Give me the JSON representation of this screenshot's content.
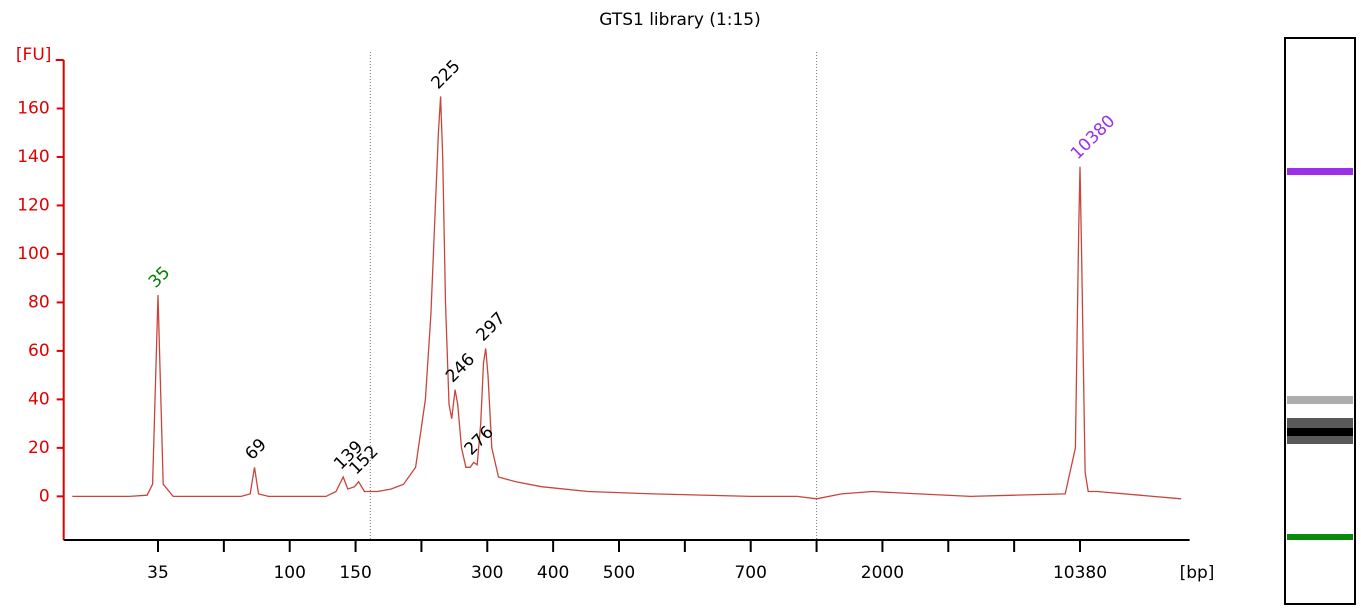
{
  "chart_data": {
    "type": "line",
    "title": "GTS1 library (1:15)",
    "ylabel": "[FU]",
    "xlabel": "[bp]",
    "x_scale": "ladder",
    "xlim": [
      21,
      20000
    ],
    "ylim": [
      -18,
      180
    ],
    "xticks": [
      35,
      100,
      150,
      300,
      400,
      500,
      700,
      2000,
      10380
    ],
    "xminorticks": [
      50,
      200,
      600,
      1000,
      3000,
      7000
    ],
    "yticks": [
      0,
      20,
      40,
      60,
      80,
      100,
      120,
      140,
      160
    ],
    "axis_color": "#e00000",
    "markers": [
      160,
      1000
    ],
    "series": [
      {
        "color": "#c8453c",
        "x": [
          22,
          30,
          33,
          34,
          35,
          36,
          38,
          45,
          60,
          66,
          69,
          72,
          80,
          100,
          125,
          133,
          139,
          143,
          149,
          152,
          156,
          165,
          175,
          185,
          195,
          205,
          212,
          218,
          222,
          225,
          228,
          232,
          237,
          241,
          246,
          250,
          256,
          263,
          270,
          276,
          282,
          288,
          293,
          297,
          301,
          306,
          315,
          340,
          380,
          450,
          550,
          700,
          900,
          1000,
          1300,
          1800,
          2500,
          4000,
          7000,
          9500,
          10100,
          10300,
          10380,
          10480,
          10700,
          10900,
          11500,
          19000
        ],
        "values": [
          0,
          0,
          0.5,
          5,
          83,
          5,
          0,
          0,
          0,
          1,
          12,
          1,
          0,
          0,
          0,
          2,
          8,
          3,
          4,
          6,
          2,
          2,
          3,
          5,
          12,
          40,
          75,
          120,
          150,
          165,
          140,
          80,
          38,
          32,
          44,
          38,
          20,
          12,
          12,
          14,
          13,
          30,
          55,
          61,
          50,
          20,
          8,
          6,
          4,
          2,
          1,
          0,
          0,
          -1,
          1,
          2,
          1,
          0,
          0.5,
          1,
          20,
          110,
          136,
          100,
          10,
          2,
          2,
          -1
        ]
      }
    ],
    "peaks": [
      {
        "x": 35,
        "y": 83,
        "color": "#008000"
      },
      {
        "x": 69,
        "y": 12,
        "color": "#000000"
      },
      {
        "x": 139,
        "y": 8,
        "color": "#000000"
      },
      {
        "x": 152,
        "y": 6,
        "color": "#000000"
      },
      {
        "x": 225,
        "y": 165,
        "color": "#000000"
      },
      {
        "x": 246,
        "y": 44,
        "color": "#000000"
      },
      {
        "x": 276,
        "y": 14,
        "color": "#000000"
      },
      {
        "x": 297,
        "y": 61,
        "color": "#000000"
      },
      {
        "x": 10380,
        "y": 136,
        "color": "#9b30e8"
      }
    ]
  }
}
